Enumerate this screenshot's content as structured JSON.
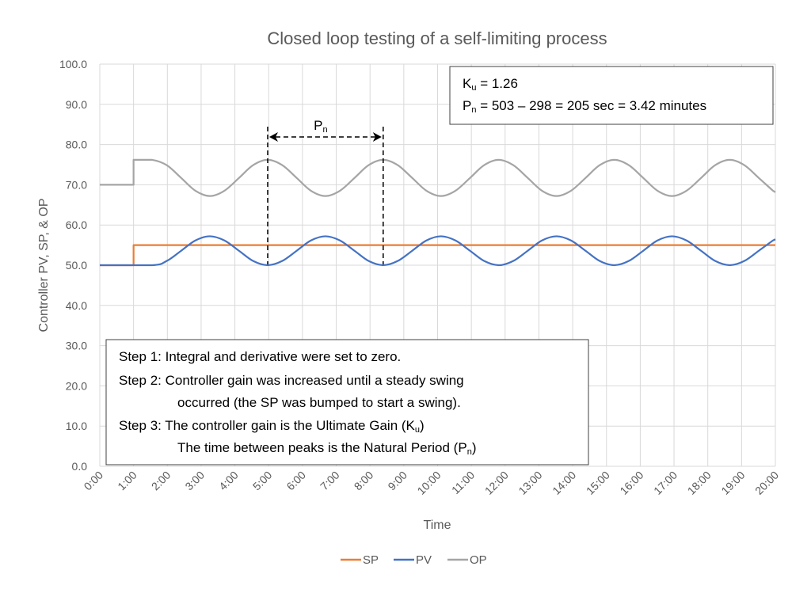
{
  "chart_data": {
    "type": "line",
    "title": "Closed loop testing of a self-limiting process",
    "xlabel": "Time",
    "ylabel": "Controller PV, SP, & OP",
    "xlim": [
      0,
      20
    ],
    "ylim": [
      0,
      100
    ],
    "x_unit": "minutes",
    "x_tick_labels": [
      "0:00",
      "1:00",
      "2:00",
      "3:00",
      "4:00",
      "5:00",
      "6:00",
      "7:00",
      "8:00",
      "9:00",
      "10:00",
      "11:00",
      "12:00",
      "13:00",
      "14:00",
      "15:00",
      "16:00",
      "17:00",
      "18:00",
      "19:00",
      "20:00"
    ],
    "y_tick_labels": [
      "0.0",
      "10.0",
      "20.0",
      "30.0",
      "40.0",
      "50.0",
      "60.0",
      "70.0",
      "80.0",
      "90.0",
      "100.0"
    ],
    "grid": true,
    "legend_position": "bottom",
    "series": [
      {
        "name": "SP",
        "color": "#ed7d31",
        "points": [
          [
            0,
            50
          ],
          [
            1,
            50
          ],
          [
            1,
            55
          ],
          [
            20,
            55
          ]
        ]
      },
      {
        "name": "PV",
        "color": "#4472c4",
        "points": [
          [
            0,
            50
          ],
          [
            1.55,
            50
          ],
          [
            1.98,
            51.05
          ],
          [
            2.41,
            53.6
          ],
          [
            2.83,
            56.15
          ],
          [
            3.26,
            57.2
          ],
          [
            3.69,
            56.15
          ],
          [
            4.12,
            53.6
          ],
          [
            4.54,
            51.05
          ],
          [
            4.97,
            50
          ],
          [
            5.4,
            51.05
          ],
          [
            5.83,
            53.6
          ],
          [
            6.25,
            56.15
          ],
          [
            6.68,
            57.2
          ],
          [
            7.11,
            56.15
          ],
          [
            7.54,
            53.6
          ],
          [
            7.96,
            51.05
          ],
          [
            8.39,
            50
          ],
          [
            8.82,
            51.05
          ],
          [
            9.25,
            53.6
          ],
          [
            9.67,
            56.15
          ],
          [
            10.1,
            57.2
          ],
          [
            10.53,
            56.15
          ],
          [
            10.96,
            53.6
          ],
          [
            11.38,
            51.05
          ],
          [
            11.81,
            50
          ],
          [
            12.24,
            51.05
          ],
          [
            12.67,
            53.6
          ],
          [
            13.09,
            56.15
          ],
          [
            13.52,
            57.2
          ],
          [
            13.95,
            56.15
          ],
          [
            14.38,
            53.6
          ],
          [
            14.8,
            51.05
          ],
          [
            15.23,
            50
          ],
          [
            15.66,
            51.05
          ],
          [
            16.09,
            53.6
          ],
          [
            16.51,
            56.15
          ],
          [
            16.94,
            57.2
          ],
          [
            17.37,
            56.15
          ],
          [
            17.8,
            53.6
          ],
          [
            18.22,
            51.05
          ],
          [
            18.65,
            50
          ],
          [
            19.08,
            51.05
          ],
          [
            19.51,
            53.6
          ],
          [
            19.93,
            56.15
          ],
          [
            20,
            56.44
          ]
        ]
      },
      {
        "name": "OP",
        "color": "#a5a5a5",
        "points": [
          [
            0,
            70
          ],
          [
            1,
            70
          ],
          [
            1,
            76.2
          ],
          [
            1.55,
            76.2
          ],
          [
            1.98,
            74.88
          ],
          [
            2.41,
            71.7
          ],
          [
            2.83,
            68.52
          ],
          [
            3.26,
            67.2
          ],
          [
            3.69,
            68.52
          ],
          [
            4.12,
            71.7
          ],
          [
            4.54,
            74.88
          ],
          [
            4.97,
            76.2
          ],
          [
            5.4,
            74.88
          ],
          [
            5.83,
            71.7
          ],
          [
            6.25,
            68.52
          ],
          [
            6.68,
            67.2
          ],
          [
            7.11,
            68.52
          ],
          [
            7.54,
            71.7
          ],
          [
            7.96,
            74.88
          ],
          [
            8.39,
            76.2
          ],
          [
            8.82,
            74.88
          ],
          [
            9.25,
            71.7
          ],
          [
            9.67,
            68.52
          ],
          [
            10.1,
            67.2
          ],
          [
            10.53,
            68.52
          ],
          [
            10.96,
            71.7
          ],
          [
            11.38,
            74.88
          ],
          [
            11.81,
            76.2
          ],
          [
            12.24,
            74.88
          ],
          [
            12.67,
            71.7
          ],
          [
            13.09,
            68.52
          ],
          [
            13.52,
            67.2
          ],
          [
            13.95,
            68.52
          ],
          [
            14.38,
            71.7
          ],
          [
            14.8,
            74.88
          ],
          [
            15.23,
            76.2
          ],
          [
            15.66,
            74.88
          ],
          [
            16.09,
            71.7
          ],
          [
            16.51,
            68.52
          ],
          [
            16.94,
            67.2
          ],
          [
            17.37,
            68.52
          ],
          [
            17.8,
            71.7
          ],
          [
            18.22,
            74.88
          ],
          [
            18.65,
            76.2
          ],
          [
            19.08,
            74.88
          ],
          [
            19.51,
            71.7
          ],
          [
            19.93,
            68.52
          ],
          [
            20,
            68.15
          ]
        ]
      }
    ],
    "annotations": {
      "pn_marker": {
        "label_main": "P",
        "label_sub": "n",
        "from_x": 4.97,
        "to_x": 8.39
      },
      "results_box": {
        "line1": {
          "main": "K",
          "sub": "u",
          "rest": " = 1.26"
        },
        "line2": {
          "main": "P",
          "sub": "n",
          "rest": " = 503 – 298 = 205 sec = 3.42 minutes"
        }
      },
      "steps_box": {
        "line1": "Step 1: Integral and derivative were set to zero.",
        "line2": "Step 2: Controller gain was increased until a steady swing",
        "line3": "occurred (the SP was bumped to start a swing).",
        "line4_pre": "Step 3: The controller gain is the Ultimate Gain (K",
        "line4_sub": "u",
        "line4_post": ")",
        "line5_pre": "The time between peaks is the Natural Period (P",
        "line5_sub": "n",
        "line5_post": ")"
      }
    }
  }
}
